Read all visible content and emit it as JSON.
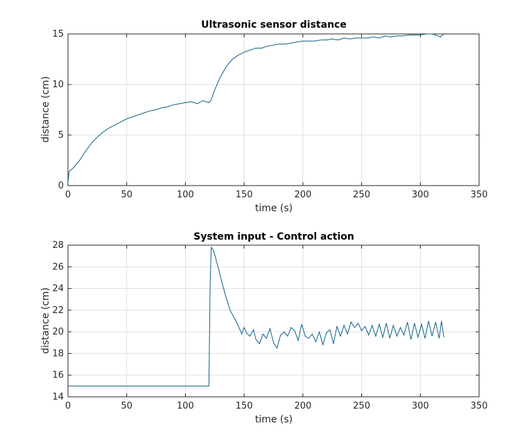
{
  "chart_data": [
    {
      "type": "line",
      "title": "Ultrasonic sensor distance",
      "xlabel": "time (s)",
      "ylabel": "distance (cm)",
      "xlim": [
        0,
        350
      ],
      "ylim": [
        0,
        15
      ],
      "xticks": [
        0,
        50,
        100,
        150,
        200,
        250,
        300,
        350
      ],
      "yticks": [
        0,
        5,
        10,
        15
      ],
      "grid": true,
      "line_color": "#0b5e86",
      "series": [
        {
          "x": [
            0,
            1,
            2,
            5,
            10,
            15,
            20,
            25,
            30,
            35,
            40,
            45,
            50,
            55,
            60,
            65,
            70,
            75,
            80,
            85,
            90,
            95,
            100,
            105,
            110,
            115,
            120,
            122,
            125,
            130,
            135,
            140,
            145,
            150,
            155,
            160,
            165,
            170,
            175,
            180,
            185,
            190,
            195,
            200,
            205,
            210,
            215,
            220,
            225,
            230,
            235,
            240,
            245,
            250,
            255,
            260,
            265,
            270,
            275,
            280,
            285,
            290,
            295,
            300,
            305,
            310,
            315,
            317,
            320
          ],
          "y": [
            0.3,
            1.4,
            1.5,
            1.8,
            2.5,
            3.4,
            4.2,
            4.8,
            5.3,
            5.7,
            6.0,
            6.3,
            6.6,
            6.8,
            7.0,
            7.2,
            7.4,
            7.5,
            7.7,
            7.8,
            8.0,
            8.1,
            8.2,
            8.3,
            8.1,
            8.4,
            8.2,
            8.5,
            9.5,
            10.8,
            11.8,
            12.5,
            12.9,
            13.2,
            13.4,
            13.6,
            13.6,
            13.8,
            13.9,
            14.0,
            14.0,
            14.1,
            14.2,
            14.3,
            14.3,
            14.3,
            14.4,
            14.4,
            14.5,
            14.4,
            14.6,
            14.5,
            14.6,
            14.6,
            14.6,
            14.7,
            14.6,
            14.8,
            14.7,
            14.8,
            14.8,
            14.9,
            14.9,
            14.9,
            15.0,
            15.0,
            14.8,
            14.7,
            15.0
          ]
        }
      ]
    },
    {
      "type": "line",
      "title": "System input - Control action",
      "xlabel": "time (s)",
      "ylabel": "distance (cm)",
      "xlim": [
        0,
        350
      ],
      "ylim": [
        14,
        28
      ],
      "xticks": [
        0,
        50,
        100,
        150,
        200,
        250,
        300,
        350
      ],
      "yticks": [
        14,
        16,
        18,
        20,
        22,
        24,
        26,
        28
      ],
      "grid": true,
      "line_color": "#0b5e86",
      "series": [
        {
          "x": [
            0,
            120,
            120.5,
            121,
            122,
            124,
            126,
            128,
            130,
            132,
            134,
            136,
            138,
            140,
            142,
            144,
            146,
            148,
            150,
            152,
            155,
            158,
            160,
            163,
            166,
            169,
            172,
            175,
            178,
            181,
            184,
            187,
            190,
            193,
            196,
            199,
            202,
            205,
            208,
            211,
            214,
            217,
            220,
            223,
            226,
            229,
            232,
            235,
            238,
            241,
            244,
            247,
            250,
            253,
            256,
            259,
            262,
            265,
            268,
            271,
            274,
            277,
            280,
            283,
            286,
            289,
            292,
            295,
            298,
            301,
            304,
            307,
            310,
            313,
            316,
            318,
            320
          ],
          "y": [
            15.0,
            15.0,
            19.5,
            24.0,
            27.8,
            27.5,
            26.7,
            25.9,
            25.0,
            24.2,
            23.4,
            22.7,
            22.0,
            21.6,
            21.2,
            20.8,
            20.3,
            19.8,
            20.4,
            19.9,
            19.6,
            20.2,
            19.3,
            18.9,
            19.8,
            19.4,
            20.3,
            19.0,
            18.5,
            19.7,
            20.0,
            19.6,
            20.4,
            20.1,
            19.2,
            20.7,
            19.6,
            19.4,
            19.8,
            19.1,
            20.0,
            18.8,
            19.9,
            20.2,
            18.9,
            20.5,
            19.6,
            20.6,
            19.8,
            20.9,
            20.4,
            20.8,
            20.1,
            20.5,
            19.7,
            20.6,
            19.6,
            20.7,
            19.5,
            20.8,
            19.4,
            20.6,
            19.6,
            20.4,
            19.7,
            20.9,
            19.3,
            20.8,
            19.5,
            20.7,
            19.4,
            21.0,
            19.6,
            20.9,
            19.4,
            21.0,
            19.5
          ]
        }
      ]
    }
  ]
}
